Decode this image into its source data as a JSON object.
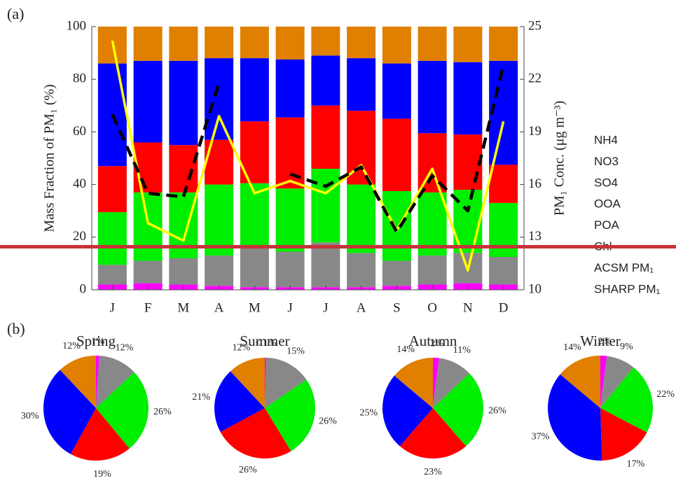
{
  "chart_data": [
    {
      "type": "bar",
      "stacked": true,
      "panel_label": "(a)",
      "categories": [
        "J",
        "F",
        "M",
        "A",
        "M",
        "J",
        "J",
        "A",
        "S",
        "O",
        "N",
        "D"
      ],
      "ylabel": "Mass Fraction of PM₁ (%)",
      "y2label": "PM₁ Conc. (μg m⁻³)",
      "ylim": [
        0,
        100
      ],
      "yticks": [
        0,
        20,
        40,
        60,
        80,
        100
      ],
      "y2lim": [
        10,
        25
      ],
      "y2ticks": [
        10,
        13,
        16,
        19,
        22,
        25
      ],
      "series": [
        {
          "name": "NH4",
          "color": "#e07f00",
          "values": [
            14,
            13,
            13,
            12,
            12,
            12.5,
            11,
            12,
            14,
            13,
            13.5,
            13
          ]
        },
        {
          "name": "NO3",
          "color": "#0000ff",
          "values": [
            39,
            31,
            32,
            31,
            24,
            22,
            19,
            20,
            21,
            27.5,
            27.5,
            39.5
          ]
        },
        {
          "name": "SO4",
          "color": "#ff0000",
          "values": [
            17.5,
            19,
            18,
            17,
            23.5,
            27,
            24,
            28,
            27.5,
            22.5,
            21,
            14.5
          ]
        },
        {
          "name": "OOA",
          "color": "#00ee00",
          "values": [
            20,
            26,
            25,
            27,
            24.5,
            24,
            28,
            26,
            26.5,
            24,
            24,
            20.5
          ]
        },
        {
          "name": "POA",
          "color": "#888888",
          "values": [
            7.5,
            8.5,
            10,
            11.5,
            15,
            13.5,
            17,
            13,
            9.5,
            11,
            11.5,
            10.5
          ]
        },
        {
          "name": "Chl",
          "color": "#ff00ff",
          "values": [
            2,
            2.5,
            2,
            1.5,
            1,
            1,
            1,
            1,
            1.5,
            2,
            2.5,
            2
          ]
        },
        {
          "name": "ACSM PM₁",
          "color": "#ffff00",
          "type": "line",
          "axis": "y2",
          "values": [
            24.2,
            13.8,
            12.8,
            19.9,
            15.5,
            16.2,
            15.5,
            17.1,
            13.4,
            16.9,
            11.1,
            19.6
          ]
        },
        {
          "name": "SHARP PM₁",
          "color": "#000000",
          "type": "line",
          "dashed": true,
          "axis": "y2",
          "values": [
            20.0,
            15.5,
            15.3,
            21.8,
            null,
            16.6,
            15.9,
            17.0,
            13.3,
            16.5,
            14.5,
            22.8
          ]
        }
      ]
    },
    {
      "type": "pie",
      "panel_label": "(b)",
      "title": "Spring",
      "colors": [
        "#ff00ff",
        "#888888",
        "#00ee00",
        "#ff0000",
        "#0000ff",
        "#e07f00"
      ],
      "values": [
        1,
        12,
        26,
        19,
        30,
        12
      ],
      "value_labels": [
        "1%",
        "12%",
        "26%",
        "19%",
        "30%",
        "12%"
      ]
    },
    {
      "type": "pie",
      "title": "Summer",
      "colors": [
        "#ff00ff",
        "#888888",
        "#00ee00",
        "#ff0000",
        "#0000ff",
        "#e07f00"
      ],
      "values": [
        0.5,
        15,
        26,
        26,
        21,
        12
      ],
      "value_labels": [
        "< 1%",
        "15%",
        "26%",
        "26%",
        "21%",
        "12%"
      ]
    },
    {
      "type": "pie",
      "title": "Autumn",
      "colors": [
        "#ff00ff",
        "#888888",
        "#00ee00",
        "#ff0000",
        "#0000ff",
        "#e07f00"
      ],
      "values": [
        2,
        11,
        26,
        23,
        25,
        14
      ],
      "value_labels": [
        "2%",
        "11%",
        "26%",
        "23%",
        "25%",
        "14%"
      ]
    },
    {
      "type": "pie",
      "title": "Winter",
      "colors": [
        "#ff00ff",
        "#888888",
        "#00ee00",
        "#ff0000",
        "#0000ff",
        "#e07f00"
      ],
      "values": [
        2,
        9,
        22,
        17,
        37,
        14
      ],
      "value_labels": [
        "2%",
        "9%",
        "22%",
        "17%",
        "37%",
        "14%"
      ]
    }
  ]
}
